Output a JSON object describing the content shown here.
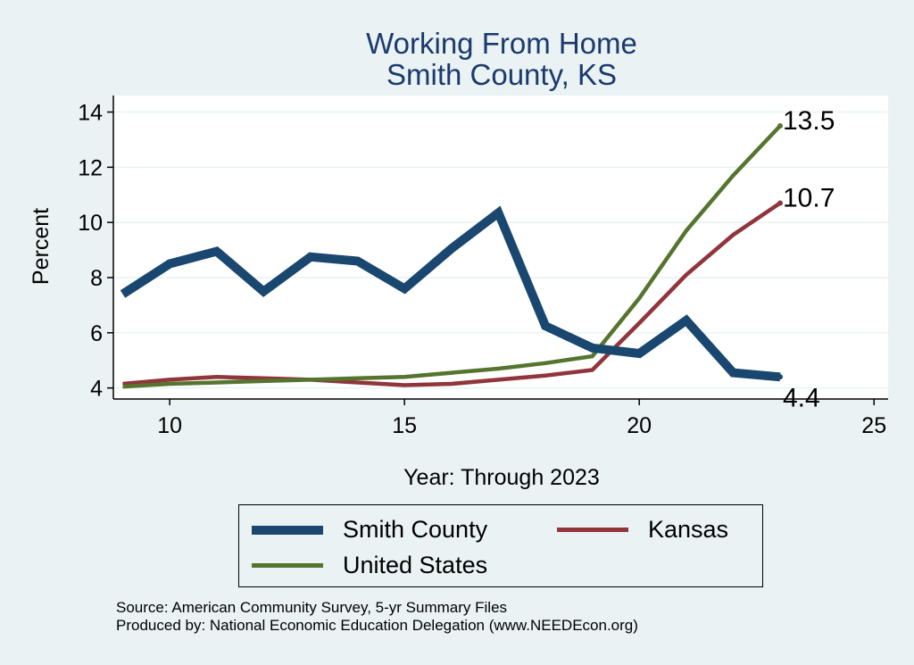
{
  "chart_data": {
    "type": "line",
    "title": [
      "Working From Home",
      "Smith County, KS"
    ],
    "xlabel": "Year: Through 2023",
    "ylabel": "Percent",
    "xlim": [
      8.8,
      25.3
    ],
    "ylim": [
      3.6,
      14.6
    ],
    "xticks": [
      10,
      15,
      20,
      25
    ],
    "yticks": [
      4,
      6,
      8,
      10,
      12,
      14
    ],
    "grid": true,
    "series": [
      {
        "name": "Smith County",
        "color": "#1a476f",
        "x": [
          9,
          10,
          11,
          12,
          13,
          14,
          15,
          16,
          17,
          18,
          19,
          20,
          21,
          22,
          23
        ],
        "y": [
          7.4,
          8.5,
          8.95,
          7.5,
          8.75,
          8.6,
          7.6,
          9.05,
          10.35,
          6.25,
          5.45,
          5.25,
          6.45,
          4.55,
          4.4
        ],
        "end_label": "4.4"
      },
      {
        "name": "Kansas",
        "color": "#90353b",
        "x": [
          9,
          10,
          11,
          12,
          13,
          14,
          15,
          16,
          17,
          18,
          19,
          20,
          21,
          22,
          23
        ],
        "y": [
          4.15,
          4.3,
          4.4,
          4.35,
          4.3,
          4.2,
          4.1,
          4.15,
          4.3,
          4.45,
          4.65,
          6.35,
          8.1,
          9.55,
          10.7
        ],
        "end_label": "10.7"
      },
      {
        "name": "United States",
        "color": "#55752f",
        "x": [
          9,
          10,
          11,
          12,
          13,
          14,
          15,
          16,
          17,
          18,
          19,
          20,
          21,
          22,
          23
        ],
        "y": [
          4.05,
          4.15,
          4.2,
          4.25,
          4.3,
          4.35,
          4.4,
          4.55,
          4.7,
          4.9,
          5.15,
          7.25,
          9.7,
          11.7,
          13.5
        ],
        "end_label": "13.5"
      }
    ],
    "legend_position": "bottom"
  },
  "legend": {
    "items": [
      "Smith County",
      "Kansas",
      "United States"
    ]
  },
  "source": {
    "line1": "Source: American Community Survey, 5-yr Summary Files",
    "line2": "Produced by: National Economic Education Delegation (www.NEEDEcon.org)"
  }
}
